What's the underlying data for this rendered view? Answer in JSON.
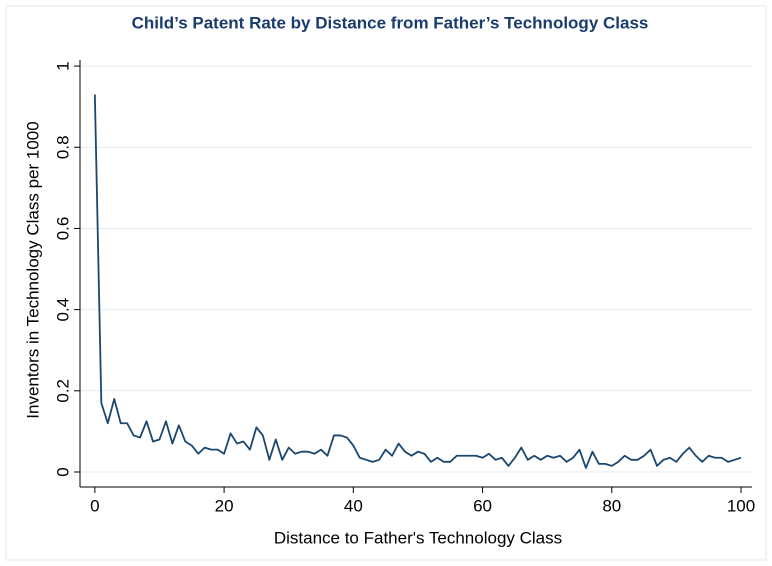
{
  "chart_data": {
    "type": "line",
    "title": "Child’s Patent Rate by Distance from Father’s Technology Class",
    "x_label": "Distance to Father's Technology Class",
    "y_label": "Inventors in Technology Class per 1000",
    "color": "#1a476f",
    "grid": true,
    "x": [
      0,
      1,
      2,
      3,
      4,
      5,
      6,
      7,
      8,
      9,
      10,
      11,
      12,
      13,
      14,
      15,
      16,
      17,
      18,
      19,
      20,
      21,
      22,
      23,
      24,
      25,
      26,
      27,
      28,
      29,
      30,
      31,
      32,
      33,
      34,
      35,
      36,
      37,
      38,
      39,
      40,
      41,
      42,
      43,
      44,
      45,
      46,
      47,
      48,
      49,
      50,
      51,
      52,
      53,
      54,
      55,
      56,
      57,
      58,
      59,
      60,
      61,
      62,
      63,
      64,
      65,
      66,
      67,
      68,
      69,
      70,
      71,
      72,
      73,
      74,
      75,
      76,
      77,
      78,
      79,
      80,
      81,
      82,
      83,
      84,
      85,
      86,
      87,
      88,
      89,
      90,
      91,
      92,
      93,
      94,
      95,
      96,
      97,
      98,
      99,
      100
    ],
    "values": [
      0.93,
      0.17,
      0.12,
      0.18,
      0.12,
      0.12,
      0.09,
      0.085,
      0.125,
      0.075,
      0.08,
      0.125,
      0.07,
      0.115,
      0.075,
      0.065,
      0.045,
      0.06,
      0.055,
      0.055,
      0.045,
      0.095,
      0.07,
      0.075,
      0.055,
      0.11,
      0.09,
      0.03,
      0.08,
      0.03,
      0.06,
      0.045,
      0.05,
      0.05,
      0.045,
      0.055,
      0.04,
      0.09,
      0.09,
      0.085,
      0.065,
      0.035,
      0.03,
      0.025,
      0.03,
      0.055,
      0.04,
      0.07,
      0.05,
      0.04,
      0.05,
      0.045,
      0.025,
      0.035,
      0.025,
      0.025,
      0.04,
      0.04,
      0.04,
      0.04,
      0.035,
      0.045,
      0.03,
      0.035,
      0.015,
      0.035,
      0.06,
      0.03,
      0.04,
      0.03,
      0.04,
      0.035,
      0.04,
      0.025,
      0.035,
      0.055,
      0.01,
      0.05,
      0.02,
      0.02,
      0.015,
      0.025,
      0.04,
      0.03,
      0.03,
      0.04,
      0.055,
      0.015,
      0.03,
      0.035,
      0.025,
      0.045,
      0.06,
      0.04,
      0.025,
      0.04,
      0.035,
      0.035,
      0.025,
      0.03,
      0.035
    ],
    "xlim": [
      -2.3,
      101.7
    ],
    "ylim": [
      -0.037,
      1.015
    ],
    "xticks": [
      0,
      20,
      40,
      60,
      80,
      100
    ],
    "yticks": [
      0,
      0.2,
      0.4,
      0.6,
      0.8,
      1
    ]
  }
}
